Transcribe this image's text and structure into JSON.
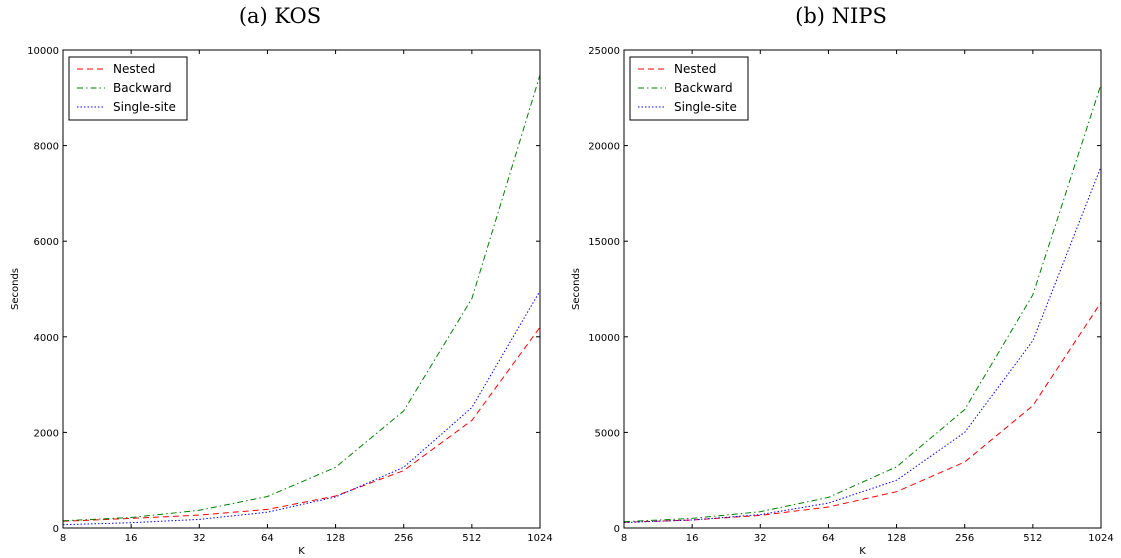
{
  "chart_data": [
    {
      "type": "line",
      "title": "(a) KOS",
      "xlabel": "K",
      "ylabel": "Seconds",
      "xscale": "log2",
      "x": [
        8,
        16,
        32,
        64,
        128,
        256,
        512,
        1024
      ],
      "xticks": [
        "8",
        "16",
        "32",
        "64",
        "128",
        "256",
        "512",
        "1024"
      ],
      "ylim": [
        0,
        10000
      ],
      "yticks": [
        0,
        2000,
        4000,
        6000,
        8000,
        10000
      ],
      "legend_position": "top-left",
      "grid": false,
      "series": [
        {
          "name": "Nested",
          "color": "#ff0000",
          "style": "dashed",
          "values": [
            140,
            200,
            270,
            390,
            670,
            1200,
            2250,
            4200
          ]
        },
        {
          "name": "Backward",
          "color": "#008000",
          "style": "dashdot",
          "values": [
            150,
            220,
            370,
            660,
            1270,
            2450,
            4800,
            9480
          ]
        },
        {
          "name": "Single-site",
          "color": "#0000ff",
          "style": "dotted",
          "values": [
            70,
            110,
            180,
            330,
            650,
            1270,
            2520,
            4960
          ]
        }
      ]
    },
    {
      "type": "line",
      "title": "(b) NIPS",
      "xlabel": "K",
      "ylabel": "Seconds",
      "xscale": "log2",
      "x": [
        8,
        16,
        32,
        64,
        128,
        256,
        512,
        1024
      ],
      "xticks": [
        "8",
        "16",
        "32",
        "64",
        "128",
        "256",
        "512",
        "1024"
      ],
      "ylim": [
        0,
        25000
      ],
      "yticks": [
        0,
        5000,
        10000,
        15000,
        20000,
        25000
      ],
      "legend_position": "top-left",
      "grid": false,
      "series": [
        {
          "name": "Nested",
          "color": "#ff0000",
          "style": "dashed",
          "values": [
            300,
            420,
            660,
            1100,
            1900,
            3450,
            6400,
            11800
          ]
        },
        {
          "name": "Backward",
          "color": "#008000",
          "style": "dashdot",
          "values": [
            330,
            500,
            850,
            1600,
            3200,
            6200,
            12200,
            23200
          ]
        },
        {
          "name": "Single-site",
          "color": "#0000ff",
          "style": "dotted",
          "values": [
            290,
            420,
            700,
            1300,
            2500,
            5000,
            9800,
            18900
          ]
        }
      ]
    }
  ]
}
